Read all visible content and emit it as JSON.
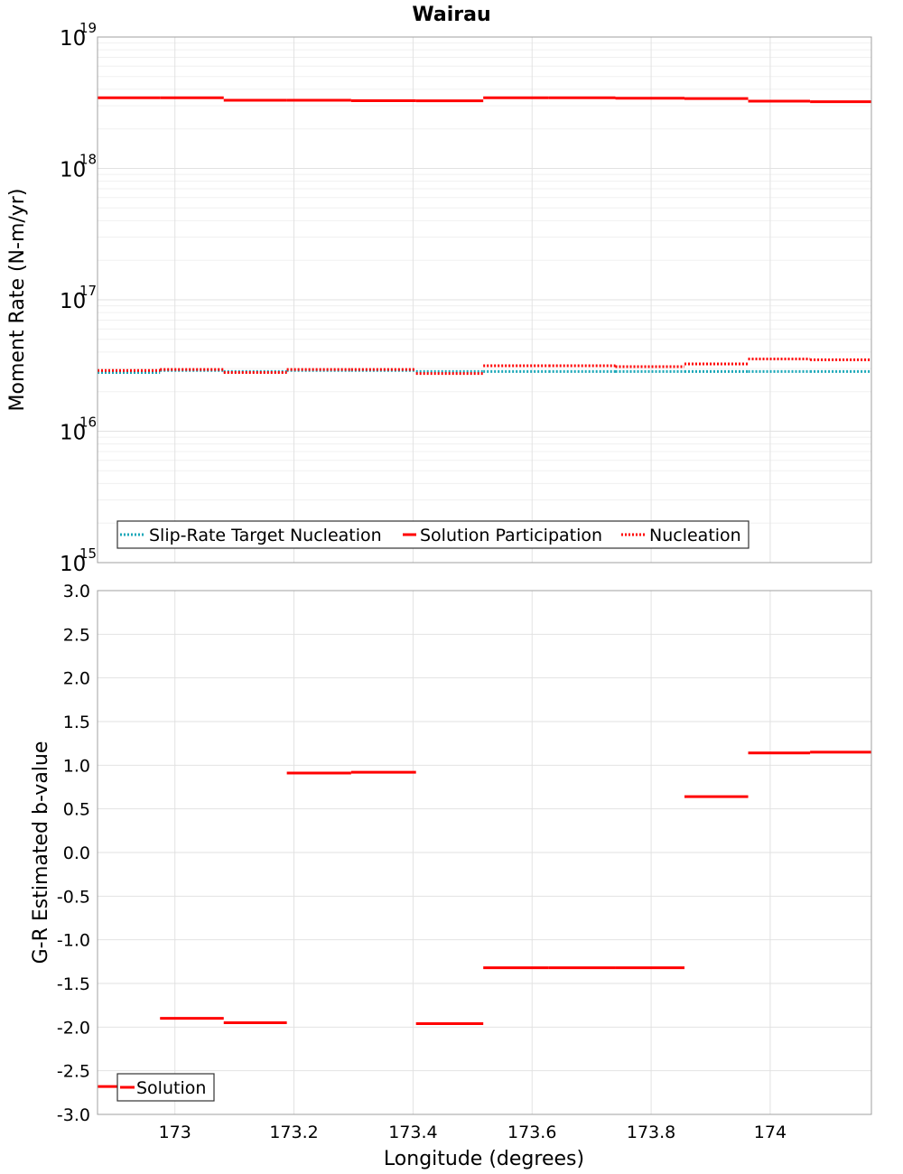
{
  "title": "Wairau",
  "colors": {
    "solution": "#ff0000",
    "target": "#1aa7b8",
    "grid_major": "#e2e2e2",
    "grid_minor": "#f0f0f0",
    "frame": "#a0a0a0"
  },
  "chart_data": [
    {
      "type": "line",
      "panel": "top",
      "ylabel": "Moment Rate (N-m/yr)",
      "yscale": "log",
      "ylim": [
        1000000000000000.0,
        1e+19
      ],
      "xlim": [
        172.87,
        174.17
      ],
      "y_ticks": [
        {
          "base": "10",
          "exp": "19",
          "value": 1e+19
        },
        {
          "base": "10",
          "exp": "18",
          "value": 1e+18
        },
        {
          "base": "10",
          "exp": "17",
          "value": 1e+17
        },
        {
          "base": "10",
          "exp": "16",
          "value": 1e+16
        },
        {
          "base": "10",
          "exp": "15",
          "value": 1000000000000000.0
        }
      ],
      "bins": [
        [
          172.87,
          172.975
        ],
        [
          172.975,
          173.082
        ],
        [
          173.082,
          173.188
        ],
        [
          173.188,
          173.296
        ],
        [
          173.296,
          173.405
        ],
        [
          173.405,
          173.518
        ],
        [
          173.518,
          173.628
        ],
        [
          173.628,
          173.74
        ],
        [
          173.74,
          173.856
        ],
        [
          173.856,
          173.963
        ],
        [
          173.963,
          174.067
        ],
        [
          174.067,
          174.17
        ]
      ],
      "series": [
        {
          "name": "Slip-Rate Target Nucleation",
          "style": "dotted",
          "color": "#1aa7b8",
          "values": [
            2.8e+16,
            2.9e+16,
            2.85e+16,
            2.9e+16,
            2.9e+16,
            2.85e+16,
            2.85e+16,
            2.85e+16,
            2.85e+16,
            2.85e+16,
            2.85e+16,
            2.85e+16
          ]
        },
        {
          "name": "Solution Participation",
          "style": "solid",
          "color": "#ff0000",
          "values": [
            3.45e+18,
            3.45e+18,
            3.3e+18,
            3.3e+18,
            3.28e+18,
            3.27e+18,
            3.45e+18,
            3.45e+18,
            3.42e+18,
            3.4e+18,
            3.25e+18,
            3.22e+18
          ]
        },
        {
          "name": "Nucleation",
          "style": "dotted",
          "color": "#ff0000",
          "values": [
            2.9e+16,
            2.95e+16,
            2.8e+16,
            2.95e+16,
            2.95e+16,
            2.75e+16,
            3.15e+16,
            3.15e+16,
            3.1e+16,
            3.25e+16,
            3.55e+16,
            3.5e+16
          ]
        }
      ],
      "legend": {
        "position": "bottom-left",
        "entries": [
          "Slip-Rate Target Nucleation",
          "Solution Participation",
          "Nucleation"
        ]
      }
    },
    {
      "type": "line",
      "panel": "bottom",
      "ylabel": "G-R Estimated b-value",
      "xlabel": "Longitude (degrees)",
      "ylim": [
        -3.0,
        3.0
      ],
      "xlim": [
        172.87,
        174.17
      ],
      "y_tick_labels": [
        "3.0",
        "2.5",
        "2.0",
        "1.5",
        "1.0",
        "0.5",
        "0.0",
        "-0.5",
        "-1.0",
        "-1.5",
        "-2.0",
        "-2.5",
        "-3.0"
      ],
      "x_tick_labels": [
        "173",
        "173.2",
        "173.4",
        "173.6",
        "173.8",
        "174"
      ],
      "x_tick_values": [
        173.0,
        173.2,
        173.4,
        173.6,
        173.8,
        174.0
      ],
      "bins": [
        [
          172.87,
          172.975
        ],
        [
          172.975,
          173.082
        ],
        [
          173.082,
          173.188
        ],
        [
          173.188,
          173.296
        ],
        [
          173.296,
          173.405
        ],
        [
          173.405,
          173.518
        ],
        [
          173.518,
          173.628
        ],
        [
          173.628,
          173.74
        ],
        [
          173.74,
          173.856
        ],
        [
          173.856,
          173.963
        ],
        [
          173.963,
          174.067
        ],
        [
          174.067,
          174.17
        ]
      ],
      "series": [
        {
          "name": "Solution",
          "style": "solid",
          "color": "#ff0000",
          "values": [
            -2.68,
            -1.9,
            -1.95,
            0.91,
            0.92,
            -1.96,
            -1.32,
            -1.32,
            -1.32,
            0.64,
            1.14,
            1.15
          ]
        }
      ],
      "legend": {
        "position": "bottom-left",
        "entries": [
          "Solution"
        ]
      }
    }
  ]
}
